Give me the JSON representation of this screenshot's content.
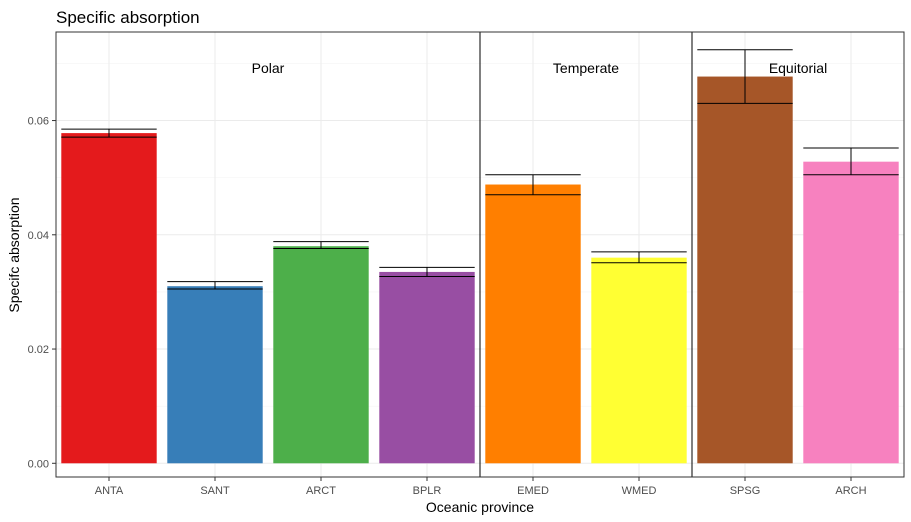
{
  "chart_data": {
    "type": "bar",
    "title": "Specific absorption",
    "xlabel": "Oceanic province",
    "ylabel": "Specifc absorption",
    "ylim": [
      -0.0024,
      0.0755
    ],
    "yticks": [
      0.0,
      0.02,
      0.04,
      0.06
    ],
    "ytick_labels": [
      "0.00",
      "0.02",
      "0.04",
      "0.06"
    ],
    "grid": true,
    "categories": [
      "ANTA",
      "SANT",
      "ARCT",
      "BPLR",
      "EMED",
      "WMED",
      "SPSG",
      "ARCH"
    ],
    "values": [
      0.0578,
      0.031,
      0.038,
      0.0335,
      0.0488,
      0.036,
      0.0677,
      0.0528
    ],
    "error_low": [
      0.0571,
      0.0305,
      0.0376,
      0.0327,
      0.047,
      0.0351,
      0.063,
      0.0505
    ],
    "error_high": [
      0.0585,
      0.0318,
      0.0388,
      0.0343,
      0.0505,
      0.037,
      0.0724,
      0.0552
    ],
    "colors": [
      "#e41a1c",
      "#377eb8",
      "#4daf4a",
      "#984ea3",
      "#ff7f00",
      "#ffff33",
      "#a65628",
      "#f781bf"
    ],
    "groups": [
      {
        "label": "Polar",
        "from": 0,
        "to": 3
      },
      {
        "label": "Temperate",
        "from": 4,
        "to": 5
      },
      {
        "label": "Equitorial",
        "from": 6,
        "to": 7
      }
    ]
  }
}
